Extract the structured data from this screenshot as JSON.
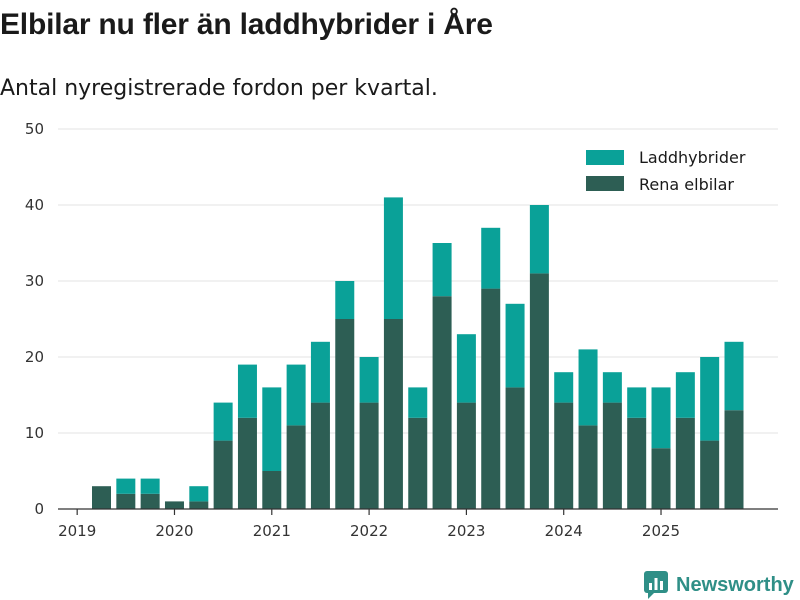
{
  "title": "Elbilar nu fler än laddhybrider i Åre",
  "subtitle": "Antal nyregistrerade fordon per kvartal.",
  "brand": "Newsworthy",
  "colors": {
    "plugin_hybrid": "#0aa198",
    "electric": "#2d5e54",
    "grid": "#e3e3e3",
    "axis": "#333333",
    "brand": "#2f8f87"
  },
  "chart_data": {
    "type": "bar",
    "stacked": true,
    "title": "Elbilar nu fler än laddhybrider i Åre",
    "subtitle": "Antal nyregistrerade fordon per kvartal.",
    "xlabel": "",
    "ylabel": "",
    "ylim": [
      0,
      50
    ],
    "yticks": [
      0,
      10,
      20,
      30,
      40,
      50
    ],
    "grid": true,
    "legend_position": "top-right",
    "xtick_labels": [
      "2019",
      "2020",
      "2021",
      "2022",
      "2023",
      "2024",
      "2025"
    ],
    "categories": [
      "2019 Q2",
      "2019 Q3",
      "2019 Q4",
      "2020 Q1",
      "2020 Q2",
      "2020 Q3",
      "2020 Q4",
      "2021 Q1",
      "2021 Q2",
      "2021 Q3",
      "2021 Q4",
      "2022 Q1",
      "2022 Q2",
      "2022 Q3",
      "2022 Q4",
      "2023 Q1",
      "2023 Q2",
      "2023 Q3",
      "2023 Q4",
      "2024 Q1",
      "2024 Q2",
      "2024 Q3",
      "2024 Q4",
      "2025 Q1",
      "2025 Q2",
      "2025 Q3",
      "2025 Q4"
    ],
    "series": [
      {
        "name": "Rena elbilar",
        "color": "#2d5e54",
        "values": [
          3,
          2,
          2,
          1,
          1,
          9,
          12,
          5,
          11,
          14,
          25,
          14,
          25,
          12,
          28,
          14,
          29,
          16,
          31,
          14,
          11,
          14,
          12,
          8,
          12,
          9,
          13
        ]
      },
      {
        "name": "Laddhybrider",
        "color": "#0aa198",
        "values": [
          0,
          2,
          2,
          0,
          2,
          5,
          7,
          11,
          8,
          8,
          5,
          6,
          16,
          4,
          7,
          9,
          8,
          11,
          9,
          4,
          10,
          4,
          4,
          8,
          6,
          11,
          9
        ]
      }
    ],
    "legend": [
      "Laddhybrider",
      "Rena elbilar"
    ]
  }
}
